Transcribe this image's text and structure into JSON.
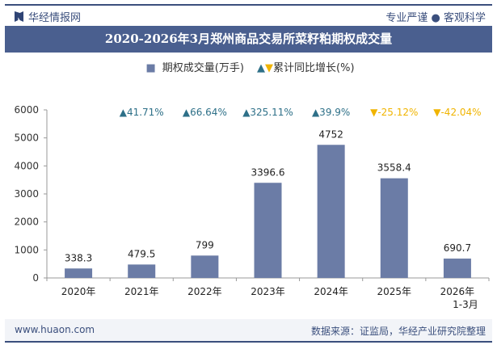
{
  "header": {
    "brand": "华经情报网",
    "slogan": "专业严谨 ● 客观科学"
  },
  "title": "2020-2026年3月郑州商品交易所菜籽粕期权成交量",
  "legend": {
    "bar": "期权成交量(万手)",
    "growth": "累计同比增长(%)"
  },
  "footer": {
    "website": "www.huaon.com",
    "source": "数据来源：证监局，华经产业研究院整理"
  },
  "colors": {
    "bar": "#6b7ca6",
    "up": "#2e7088",
    "down": "#f0b400",
    "header": "#4a5f8f"
  },
  "chart_data": {
    "type": "bar",
    "categories": [
      "2020年",
      "2021年",
      "2022年",
      "2023年",
      "2024年",
      "2025年",
      "2026年\n1-3月"
    ],
    "series": [
      {
        "name": "期权成交量(万手)",
        "values": [
          338.3,
          479.5,
          799,
          3396.6,
          4752,
          3558.4,
          690.7
        ]
      },
      {
        "name": "累计同比增长(%)",
        "values": [
          null,
          41.71,
          66.64,
          325.11,
          39.9,
          -25.12,
          -42.04
        ]
      }
    ],
    "value_labels": [
      "338.3",
      "479.5",
      "799",
      "3396.6",
      "4752",
      "3558.4",
      "690.7"
    ],
    "growth_labels": [
      "",
      "▲41.71%",
      "▲66.64%",
      "▲325.11%",
      "▲39.9%",
      "▼-25.12%",
      "▼-42.04%"
    ],
    "ylim": [
      0,
      6000
    ],
    "yticks": [
      "0",
      "1000",
      "2000",
      "3000",
      "4000",
      "5000",
      "6000"
    ],
    "grid": false
  }
}
